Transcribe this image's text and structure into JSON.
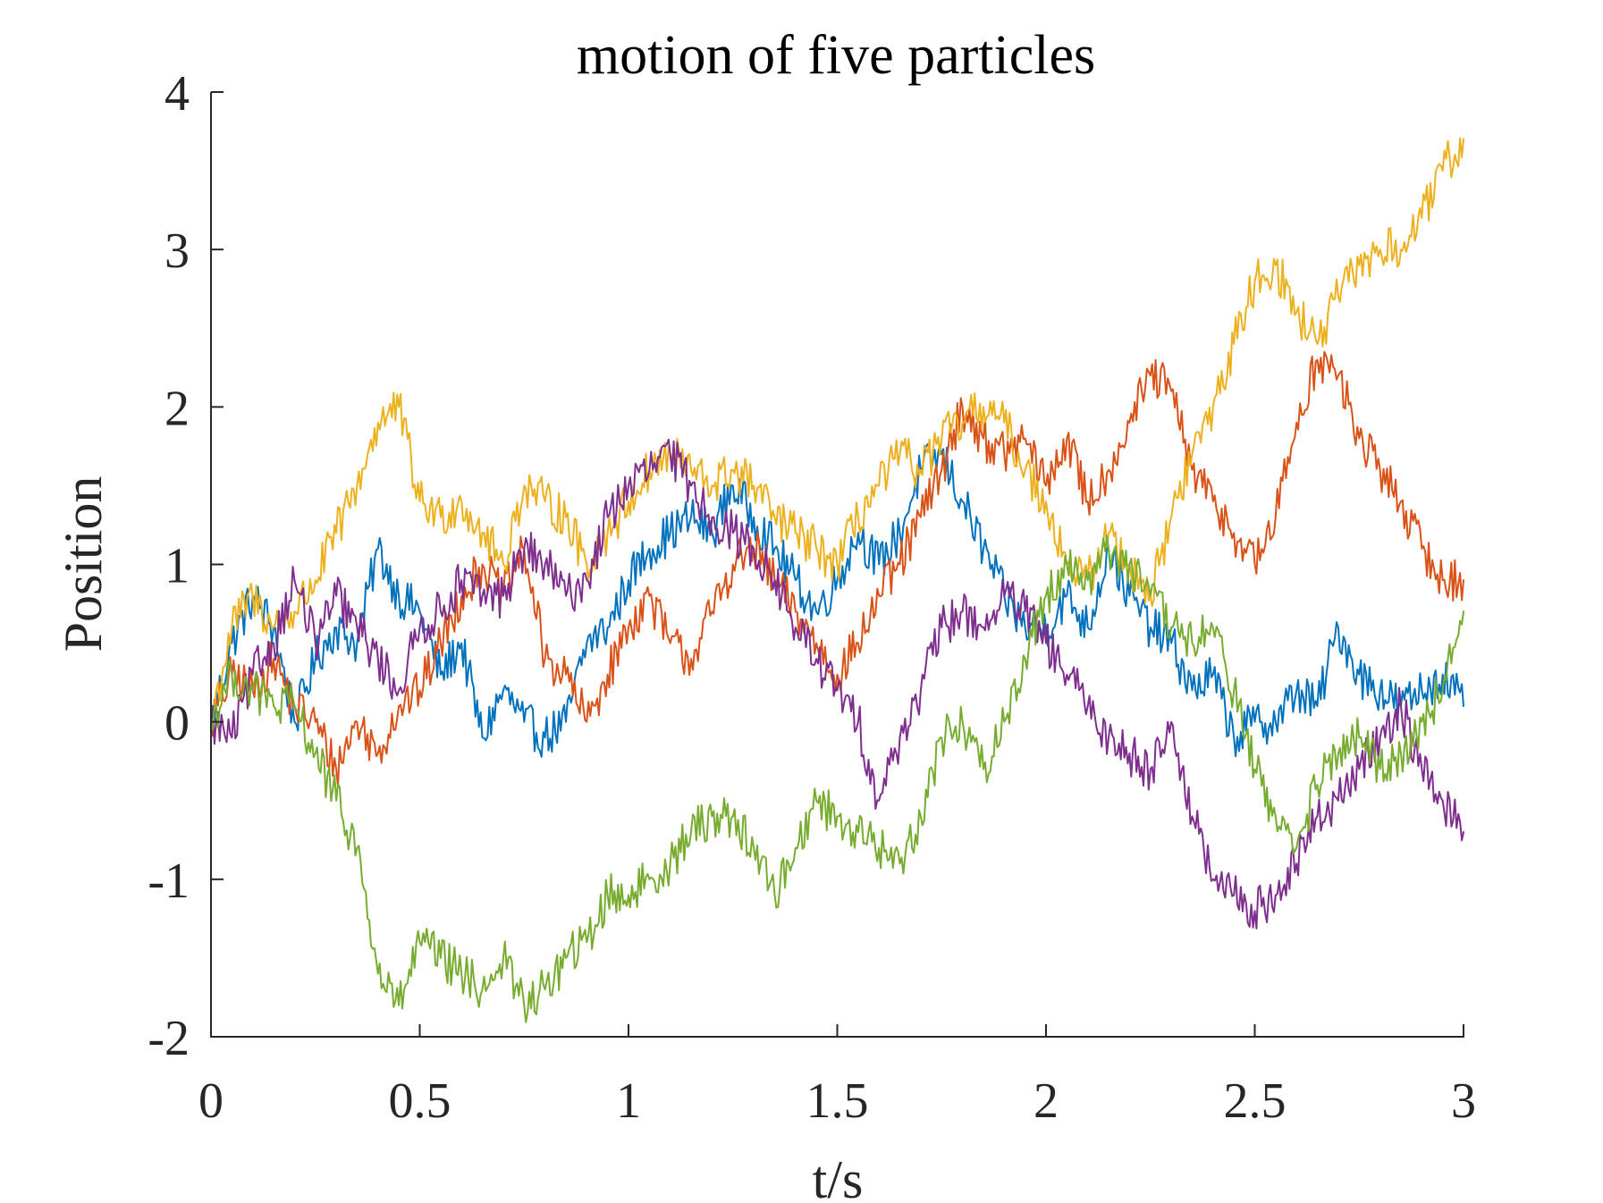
{
  "chart_data": {
    "type": "line",
    "title": "motion of five particles",
    "xlabel": "t/s",
    "ylabel": "Position",
    "xlim": [
      0,
      3
    ],
    "ylim": [
      -2,
      4
    ],
    "xticks": [
      0,
      0.5,
      1,
      1.5,
      2,
      2.5,
      3
    ],
    "xtick_labels": [
      "0",
      "0.5",
      "1",
      "1.5",
      "2",
      "2.5",
      "3"
    ],
    "yticks": [
      -2,
      -1,
      0,
      1,
      2,
      3,
      4
    ],
    "ytick_labels": [
      "-2",
      "-1",
      "0",
      "1",
      "2",
      "3",
      "4"
    ],
    "grid": false,
    "legend": false,
    "colors": [
      "#0072BD",
      "#D95319",
      "#EDB120",
      "#7E2F8E",
      "#77AC30"
    ],
    "series": [
      {
        "color": "#0072BD",
        "x": [
          0,
          0.05,
          0.1,
          0.15,
          0.2,
          0.25,
          0.3,
          0.35,
          0.4,
          0.45,
          0.5,
          0.55,
          0.6,
          0.65,
          0.7,
          0.75,
          0.8,
          0.85,
          0.9,
          0.95,
          1.0,
          1.05,
          1.1,
          1.15,
          1.2,
          1.25,
          1.3,
          1.35,
          1.4,
          1.45,
          1.5,
          1.55,
          1.6,
          1.65,
          1.7,
          1.75,
          1.8,
          1.85,
          1.9,
          1.95,
          2.0,
          2.05,
          2.1,
          2.15,
          2.2,
          2.25,
          2.3,
          2.35,
          2.4,
          2.45,
          2.5,
          2.55,
          2.6,
          2.65,
          2.7,
          2.75,
          2.8,
          2.85,
          2.9,
          2.95,
          3.0
        ],
        "y": [
          0,
          0.5,
          0.8,
          0.6,
          0.0,
          0.4,
          0.6,
          0.5,
          1.1,
          0.8,
          0.7,
          0.3,
          0.5,
          -0.1,
          0.2,
          0.0,
          -0.1,
          0.0,
          0.5,
          0.6,
          0.9,
          1.1,
          1.2,
          1.3,
          1.2,
          1.5,
          1.3,
          1.1,
          0.9,
          0.7,
          0.9,
          1.2,
          1.0,
          1.2,
          1.6,
          1.7,
          1.4,
          1.1,
          0.8,
          0.6,
          0.6,
          0.8,
          0.6,
          1.1,
          0.8,
          0.6,
          0.5,
          0.2,
          0.3,
          -0.1,
          0.0,
          0.0,
          0.2,
          0.1,
          0.6,
          0.3,
          0.2,
          0.1,
          0.2,
          0.3,
          0.1
        ]
      },
      {
        "color": "#D95319",
        "x": [
          0,
          0.05,
          0.1,
          0.15,
          0.2,
          0.25,
          0.3,
          0.35,
          0.4,
          0.45,
          0.5,
          0.55,
          0.6,
          0.65,
          0.7,
          0.75,
          0.8,
          0.85,
          0.9,
          0.95,
          1.0,
          1.05,
          1.1,
          1.15,
          1.2,
          1.25,
          1.3,
          1.35,
          1.4,
          1.45,
          1.5,
          1.55,
          1.6,
          1.65,
          1.7,
          1.75,
          1.8,
          1.85,
          1.9,
          1.95,
          2.0,
          2.05,
          2.1,
          2.15,
          2.2,
          2.25,
          2.3,
          2.35,
          2.4,
          2.45,
          2.5,
          2.55,
          2.6,
          2.65,
          2.7,
          2.75,
          2.8,
          2.85,
          2.9,
          2.95,
          3.0
        ],
        "y": [
          0,
          0.3,
          0.2,
          0.4,
          0.1,
          0.0,
          -0.3,
          0.0,
          -0.2,
          0.1,
          0.2,
          0.5,
          0.8,
          1.0,
          0.8,
          1.1,
          0.4,
          0.3,
          0.0,
          0.3,
          0.6,
          0.8,
          0.5,
          0.4,
          0.7,
          1.0,
          1.1,
          0.9,
          0.7,
          0.5,
          0.3,
          0.5,
          0.8,
          1.0,
          1.3,
          1.6,
          2.0,
          1.8,
          1.7,
          1.8,
          1.5,
          1.8,
          1.4,
          1.6,
          1.9,
          2.2,
          2.1,
          1.6,
          1.4,
          1.2,
          1.0,
          1.3,
          1.9,
          2.3,
          2.2,
          1.8,
          1.6,
          1.4,
          1.1,
          0.9,
          0.9
        ]
      },
      {
        "color": "#EDB120",
        "x": [
          0,
          0.05,
          0.1,
          0.15,
          0.2,
          0.25,
          0.3,
          0.35,
          0.4,
          0.45,
          0.5,
          0.55,
          0.6,
          0.65,
          0.7,
          0.75,
          0.8,
          0.85,
          0.9,
          0.95,
          1.0,
          1.05,
          1.1,
          1.15,
          1.2,
          1.25,
          1.3,
          1.35,
          1.4,
          1.45,
          1.5,
          1.55,
          1.6,
          1.65,
          1.7,
          1.75,
          1.8,
          1.85,
          1.9,
          1.95,
          2.0,
          2.05,
          2.1,
          2.15,
          2.2,
          2.25,
          2.3,
          2.35,
          2.4,
          2.45,
          2.5,
          2.55,
          2.6,
          2.65,
          2.7,
          2.75,
          2.8,
          2.85,
          2.9,
          2.95,
          3.0
        ],
        "y": [
          0,
          0.6,
          0.8,
          0.6,
          0.7,
          0.9,
          1.2,
          1.5,
          1.9,
          2.0,
          1.4,
          1.3,
          1.4,
          1.2,
          1.0,
          1.5,
          1.4,
          1.3,
          1.0,
          1.2,
          1.4,
          1.6,
          1.7,
          1.6,
          1.5,
          1.6,
          1.5,
          1.3,
          1.2,
          1.1,
          1.0,
          1.3,
          1.5,
          1.7,
          1.6,
          1.8,
          1.9,
          2.0,
          1.9,
          1.6,
          1.4,
          1.0,
          0.9,
          1.2,
          1.0,
          0.8,
          1.3,
          1.7,
          2.0,
          2.4,
          2.8,
          2.9,
          2.6,
          2.4,
          2.7,
          2.9,
          3.0,
          3.0,
          3.2,
          3.5,
          3.7
        ]
      },
      {
        "color": "#7E2F8E",
        "x": [
          0,
          0.05,
          0.1,
          0.15,
          0.2,
          0.25,
          0.3,
          0.35,
          0.4,
          0.45,
          0.5,
          0.55,
          0.6,
          0.65,
          0.7,
          0.75,
          0.8,
          0.85,
          0.9,
          0.95,
          1.0,
          1.05,
          1.1,
          1.15,
          1.2,
          1.25,
          1.3,
          1.35,
          1.4,
          1.45,
          1.5,
          1.55,
          1.6,
          1.65,
          1.7,
          1.75,
          1.8,
          1.85,
          1.9,
          1.95,
          2.0,
          2.05,
          2.1,
          2.15,
          2.2,
          2.25,
          2.3,
          2.35,
          2.4,
          2.45,
          2.5,
          2.55,
          2.6,
          2.65,
          2.7,
          2.75,
          2.8,
          2.85,
          2.9,
          2.95,
          3.0
        ],
        "y": [
          0,
          -0.1,
          0.3,
          0.5,
          0.9,
          0.5,
          0.8,
          0.6,
          0.4,
          0.2,
          0.6,
          0.7,
          0.9,
          0.8,
          0.8,
          1.1,
          1.0,
          0.8,
          0.9,
          1.3,
          1.5,
          1.6,
          1.7,
          1.5,
          1.3,
          1.2,
          1.1,
          0.9,
          0.6,
          0.4,
          0.2,
          0.0,
          -0.5,
          -0.1,
          0.2,
          0.6,
          0.7,
          0.6,
          0.8,
          0.7,
          0.5,
          0.3,
          0.1,
          -0.1,
          -0.2,
          -0.3,
          0.0,
          -0.6,
          -1.0,
          -1.1,
          -1.2,
          -1.1,
          -0.9,
          -0.6,
          -0.5,
          -0.3,
          -0.1,
          0.1,
          -0.3,
          -0.5,
          -0.7
        ]
      },
      {
        "color": "#77AC30",
        "x": [
          0,
          0.05,
          0.1,
          0.15,
          0.2,
          0.25,
          0.3,
          0.35,
          0.4,
          0.45,
          0.5,
          0.55,
          0.6,
          0.65,
          0.7,
          0.75,
          0.8,
          0.85,
          0.9,
          0.95,
          1.0,
          1.05,
          1.1,
          1.15,
          1.2,
          1.25,
          1.3,
          1.35,
          1.4,
          1.45,
          1.5,
          1.55,
          1.6,
          1.65,
          1.7,
          1.75,
          1.8,
          1.85,
          1.9,
          1.95,
          2.0,
          2.05,
          2.1,
          2.15,
          2.2,
          2.25,
          2.3,
          2.35,
          2.4,
          2.45,
          2.5,
          2.55,
          2.6,
          2.65,
          2.7,
          2.75,
          2.8,
          2.85,
          2.9,
          2.95,
          3.0
        ],
        "y": [
          0,
          0.3,
          0.2,
          0.1,
          0.1,
          -0.2,
          -0.5,
          -0.8,
          -1.6,
          -1.8,
          -1.4,
          -1.5,
          -1.6,
          -1.7,
          -1.5,
          -1.8,
          -1.7,
          -1.5,
          -1.4,
          -1.1,
          -1.1,
          -1.0,
          -0.9,
          -0.7,
          -0.6,
          -0.6,
          -0.8,
          -1.1,
          -0.8,
          -0.5,
          -0.6,
          -0.7,
          -0.8,
          -0.9,
          -0.6,
          -0.1,
          0.0,
          -0.3,
          0.0,
          0.4,
          0.8,
          1.0,
          0.9,
          1.1,
          1.0,
          0.8,
          0.6,
          0.5,
          0.6,
          0.2,
          -0.3,
          -0.6,
          -0.8,
          -0.4,
          -0.2,
          -0.1,
          -0.3,
          -0.2,
          0.0,
          0.2,
          0.7
        ]
      }
    ]
  }
}
